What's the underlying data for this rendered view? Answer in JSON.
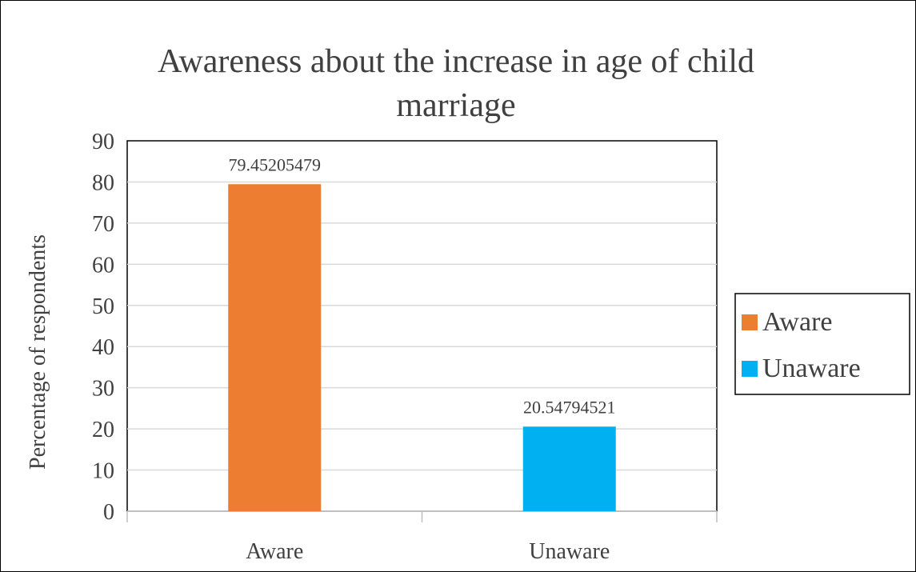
{
  "chart_data": {
    "type": "bar",
    "title": "Awareness about the increase in age of child marriage",
    "title_lines": [
      "Awareness about the increase in age of child",
      "marriage"
    ],
    "xlabel": "",
    "ylabel": "Percentage of  respondents",
    "categories": [
      "Aware",
      "Unaware"
    ],
    "values": [
      79.45205479,
      20.54794521
    ],
    "data_labels": [
      "79.45205479",
      "20.54794521"
    ],
    "colors": [
      "#ED7D31",
      "#00B0F0"
    ],
    "ylim": [
      0,
      90
    ],
    "yticks": [
      0,
      10,
      20,
      30,
      40,
      50,
      60,
      70,
      80,
      90
    ],
    "grid": true,
    "legend": {
      "position": "right",
      "entries": [
        {
          "label": "Aware",
          "color": "#ED7D31"
        },
        {
          "label": "Unaware",
          "color": "#00B0F0"
        }
      ]
    }
  }
}
